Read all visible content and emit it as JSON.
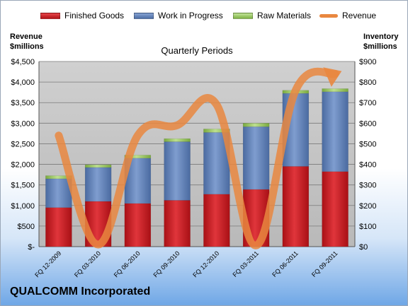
{
  "company": "QUALCOMM Incorporated",
  "colors": {
    "finished_goods": "#c8191f",
    "work_in_progress": "#5b7db4",
    "raw_materials": "#92c455",
    "revenue": "#e9873f"
  },
  "chart_data": {
    "type": "bar",
    "stacked": true,
    "title": "Quarterly Periods",
    "ylabel_left": "Revenue\n$millions",
    "ylabel_right": "Inventory\n$millions",
    "categories": [
      "FQ 12-2009",
      "FQ 03-2010",
      "FQ 06-2010",
      "FQ 09-2010",
      "FQ 12-2010",
      "FQ 03-2011",
      "FQ 06-2011",
      "FQ 09-2011"
    ],
    "y_left": {
      "range": [
        0,
        4500
      ],
      "ticks": [
        "$-",
        "$500",
        "$1,000",
        "$1,500",
        "$2,000",
        "$2,500",
        "$3,000",
        "$3,500",
        "$4,000",
        "$4,500"
      ]
    },
    "y_right": {
      "range": [
        0,
        900
      ],
      "ticks": [
        "$0",
        "$100",
        "$200",
        "$300",
        "$400",
        "$500",
        "$600",
        "$700",
        "$800",
        "$900"
      ]
    },
    "series": [
      {
        "name": "Finished Goods",
        "axis": "right",
        "values": [
          190,
          220,
          210,
          225,
          255,
          278,
          390,
          365
        ]
      },
      {
        "name": "Work in Progress",
        "axis": "right",
        "values": [
          140,
          165,
          220,
          285,
          300,
          305,
          355,
          388
        ]
      },
      {
        "name": "Raw Materials",
        "axis": "right",
        "values": [
          15,
          13,
          15,
          15,
          17,
          17,
          15,
          15
        ]
      },
      {
        "name": "Revenue",
        "axis": "left",
        "type": "line",
        "values": [
          2700,
          50,
          2700,
          2950,
          3450,
          30,
          3800,
          4200
        ]
      }
    ],
    "legend_position": "top",
    "grid": true
  }
}
